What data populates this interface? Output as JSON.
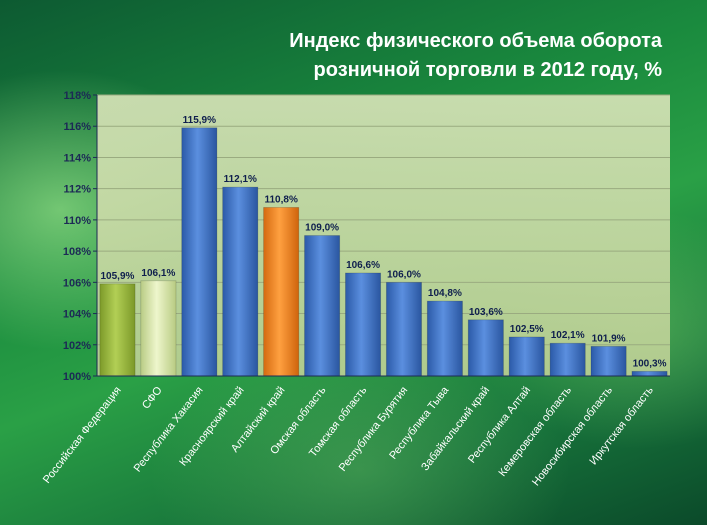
{
  "slide": {
    "title_line1": "Индекс физического объема оборота",
    "title_line2": "розничной торговли в 2012 году, %"
  },
  "colors": {
    "plot_bg": "#c9dba8",
    "bar_blue": "#3f74c8",
    "bar_olive": "#9bbb3f",
    "bar_pale": "#d6e6a6",
    "bar_orange": "#f0821e",
    "orange_label": "#b15a10"
  },
  "chart_data": {
    "type": "bar",
    "ylim": [
      100,
      118
    ],
    "y_tick_step": 2,
    "y_tick_format": "percent",
    "grid": true,
    "categories": [
      "Российская Федерация",
      "СФО",
      "Республика Хакасия",
      "Красноярский край",
      "Алтайский край",
      "Омская область",
      "Томская область",
      "Республика Бурятия",
      "Республика Тыва",
      "Забайкальский край",
      "Республика Алтай",
      "Кемеровская область",
      "Новосибирская область",
      "Иркутская область"
    ],
    "values": [
      105.9,
      106.1,
      115.9,
      112.1,
      110.8,
      109.0,
      106.6,
      106.0,
      104.8,
      103.6,
      102.5,
      102.1,
      101.9,
      100.3
    ],
    "labels": [
      "105,9%",
      "106,1%",
      "115,9%",
      "112,1%",
      "110,8%",
      "109,0%",
      "106,6%",
      "106,0%",
      "104,8%",
      "103,6%",
      "102,5%",
      "102,1%",
      "101,9%",
      "100,3%"
    ],
    "bar_colors": [
      "olive",
      "pale",
      "blue",
      "blue",
      "orange",
      "blue",
      "blue",
      "blue",
      "blue",
      "blue",
      "blue",
      "blue",
      "blue",
      "blue"
    ],
    "y_tick_labels": [
      "100%",
      "102%",
      "104%",
      "106%",
      "108%",
      "110%",
      "112%",
      "114%",
      "116%",
      "118%"
    ]
  }
}
